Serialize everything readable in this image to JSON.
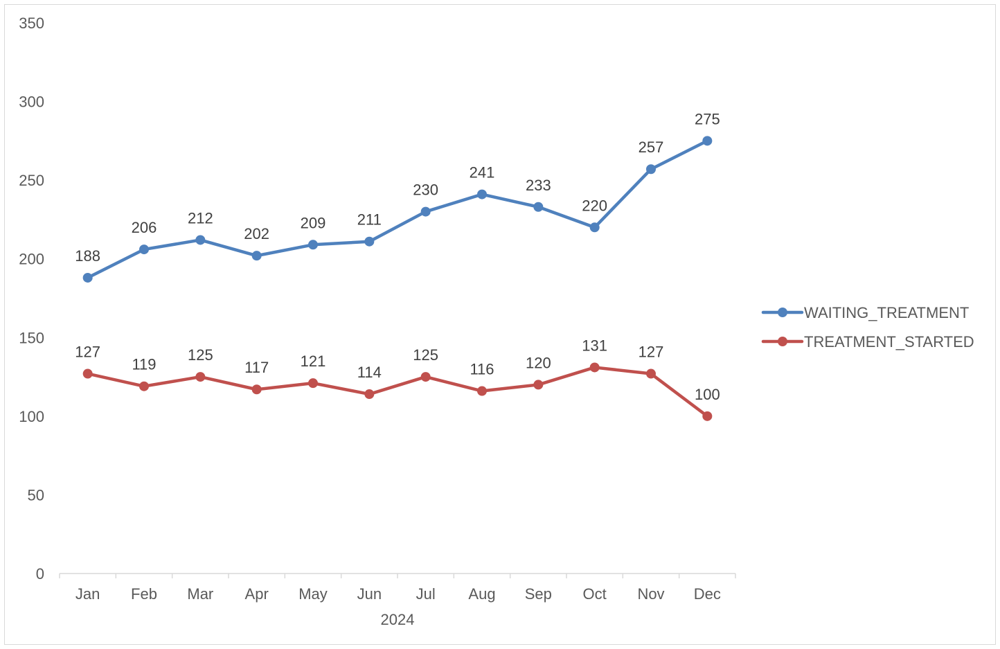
{
  "chart_data": {
    "type": "line",
    "categories": [
      "Jan",
      "Feb",
      "Mar",
      "Apr",
      "May",
      "Jun",
      "Jul",
      "Aug",
      "Sep",
      "Oct",
      "Nov",
      "Dec"
    ],
    "xlabel": "2024",
    "ylabel": "",
    "title": "",
    "ylim": [
      0,
      350
    ],
    "yticks": [
      0,
      50,
      100,
      150,
      200,
      250,
      300,
      350
    ],
    "grid": false,
    "legend_position": "right",
    "series": [
      {
        "name": "WAITING_TREATMENT",
        "color": "#4f81bd",
        "values": [
          188,
          206,
          212,
          202,
          209,
          211,
          230,
          241,
          233,
          220,
          257,
          275
        ]
      },
      {
        "name": "TREATMENT_STARTED",
        "color": "#c0504d",
        "values": [
          127,
          119,
          125,
          117,
          121,
          114,
          125,
          116,
          120,
          131,
          127,
          100
        ]
      }
    ]
  }
}
